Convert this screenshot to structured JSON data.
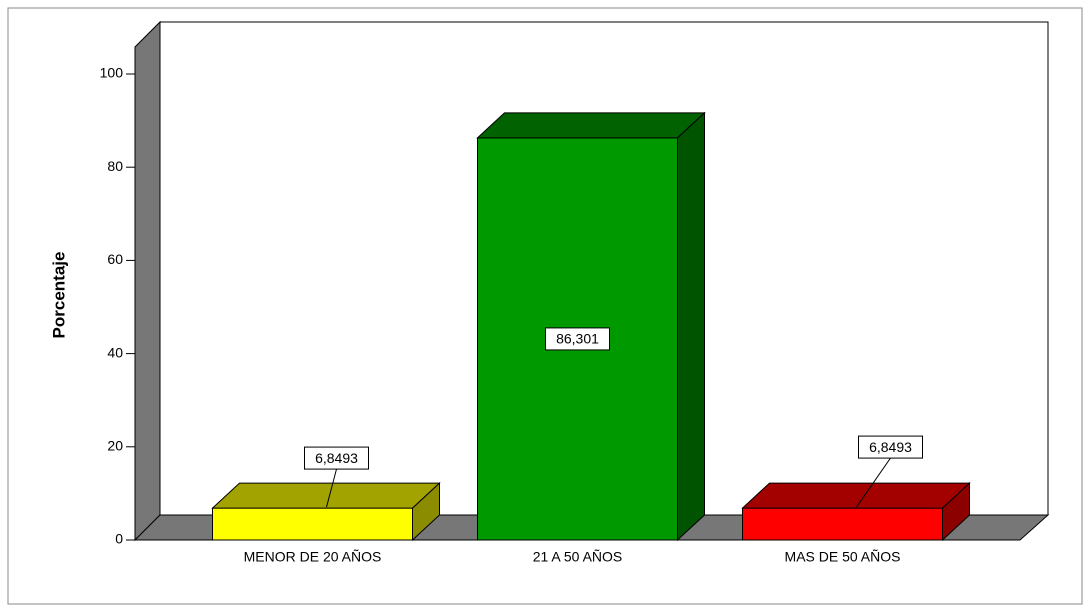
{
  "chart_data": {
    "type": "bar3d",
    "y_axis_label": "Porcentaje",
    "categories": [
      "MENOR DE 20 AÑOS",
      "21 A 50 AÑOS",
      "MAS DE 50 AÑOS"
    ],
    "values": [
      6.8493,
      86.301,
      6.8493
    ],
    "value_labels": [
      "6,8493",
      "86,301",
      "6,8493"
    ],
    "colors": [
      "#ffff00",
      "#009900",
      "#ff0000"
    ],
    "ylim": [
      0,
      100
    ],
    "yticks": [
      0,
      20,
      40,
      60,
      80,
      100
    ]
  }
}
